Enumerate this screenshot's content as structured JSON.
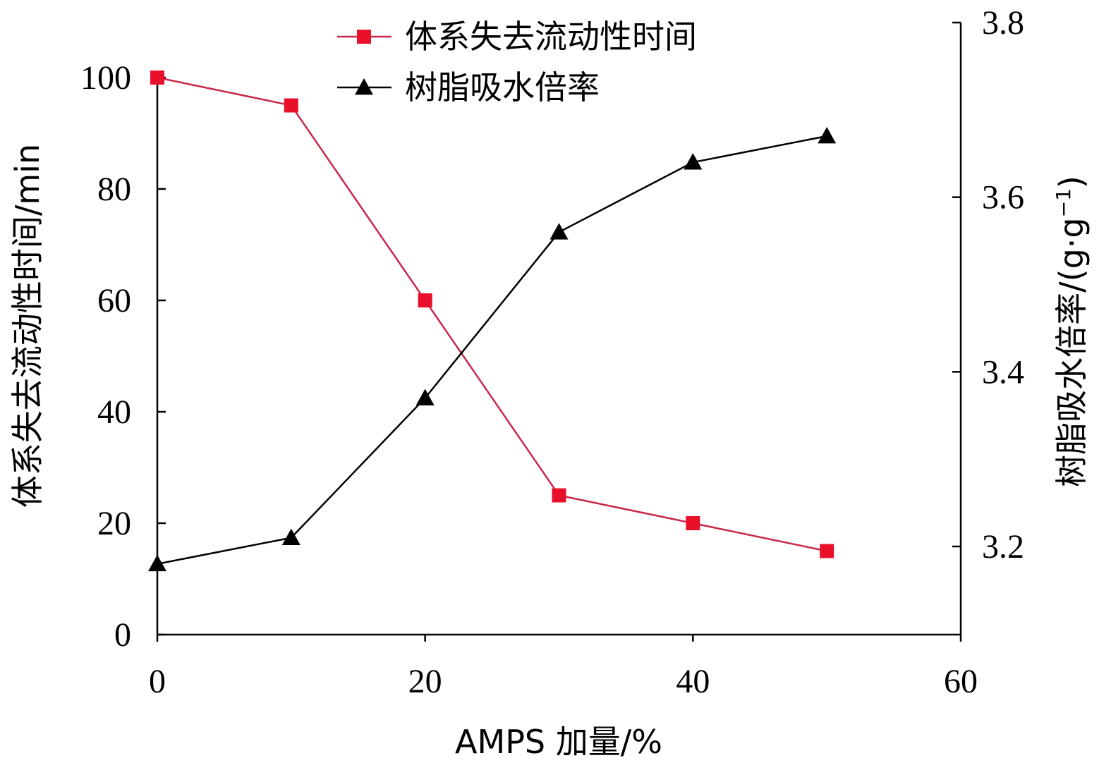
{
  "chart_data": {
    "type": "line",
    "xlabel": "AMPS 加量/%",
    "ylabel_left": "体系失去流动性时间/min",
    "ylabel_right_main": "树脂吸水倍率/(g·g",
    "ylabel_right_sup": "−1",
    "ylabel_right_close": ")",
    "xlim": [
      0,
      60
    ],
    "ylim_left": [
      0,
      100
    ],
    "ylim_right": [
      3.1,
      3.8
    ],
    "x_ticks": [
      0,
      20,
      40,
      60
    ],
    "y_left_ticks": [
      0,
      20,
      40,
      60,
      80,
      100
    ],
    "y_right_ticks": [
      3.2,
      3.4,
      3.6,
      3.8
    ],
    "x_tick_labels": [
      "0",
      "20",
      "40",
      "60"
    ],
    "y_left_tick_labels": [
      "0",
      "20",
      "40",
      "60",
      "80",
      "100"
    ],
    "y_right_tick_labels": [
      "3.2",
      "3.4",
      "3.6",
      "3.8"
    ],
    "legend_position": "top-center",
    "series": [
      {
        "name": "体系失去流动性时间",
        "axis": "left",
        "marker": "square",
        "color": "#e8102a",
        "line_color": "#c8284a",
        "x": [
          0,
          10,
          20,
          30,
          40,
          50
        ],
        "values": [
          100,
          95,
          60,
          25,
          20,
          15
        ]
      },
      {
        "name": "树脂吸水倍率",
        "axis": "right",
        "marker": "triangle",
        "color": "#000000",
        "line_color": "#000000",
        "x": [
          0,
          10,
          20,
          30,
          40,
          50
        ],
        "values": [
          3.18,
          3.21,
          3.37,
          3.56,
          3.64,
          3.67
        ]
      }
    ]
  }
}
